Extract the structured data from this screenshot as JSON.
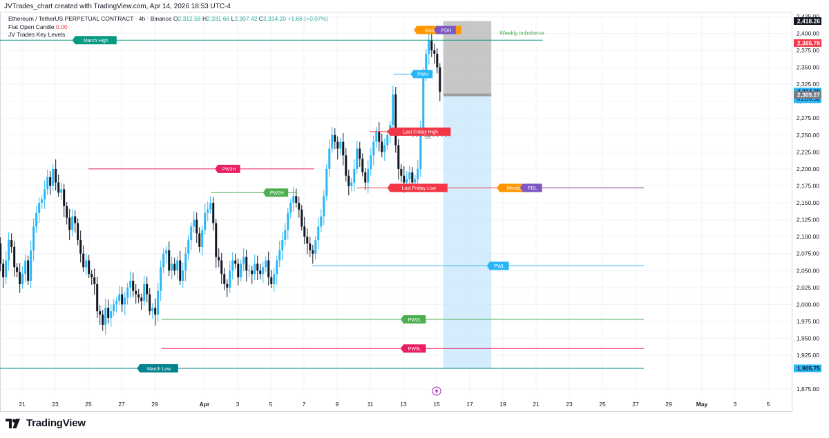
{
  "header": {
    "text": "JVTrades_chart created with TradingView.com, Apr 14, 2026 18:53 UTC-4"
  },
  "legend": {
    "symbol": "Ethereum / TetherUS PERPETUAL CONTRACT · 4h · Binance",
    "o_label": "O",
    "o_value": "2,312.56",
    "h_label": "H",
    "h_value": "2,331.66",
    "l_label": "L",
    "l_value": "2,307.42",
    "c_label": "C",
    "c_value": "2,314.20",
    "change": "+1.66 (+0.07%)",
    "indicator1_name": "Flat Open Candle",
    "indicator1_value": "0.00",
    "indicator2_name": "JV Trades Key Levels"
  },
  "footer": {
    "brand": "TradingView"
  },
  "colors": {
    "up": "#29b6f6",
    "down": "#131722",
    "grid": "#f0f3fa",
    "short_box": "#bdbdbd",
    "long_box": "#cce9fb"
  },
  "chart_data": {
    "type": "candlestick",
    "symbol": "ETHUSDT.P",
    "timeframe": "4h",
    "ylim": [
      1865,
      2432
    ],
    "y_ticks": [
      "2,425.00",
      "2,400.00",
      "2,375.00",
      "2,350.00",
      "2,325.00",
      "2,300.00",
      "2,275.00",
      "2,250.00",
      "2,225.00",
      "2,200.00",
      "2,175.00",
      "2,150.00",
      "2,125.00",
      "2,100.00",
      "2,075.00",
      "2,050.00",
      "2,025.00",
      "2,000.00",
      "1,975.00",
      "1,950.00",
      "1,925.00",
      "1,875.00"
    ],
    "y_tick_values": [
      2425,
      2400,
      2375,
      2350,
      2325,
      2300,
      2275,
      2250,
      2225,
      2200,
      2175,
      2150,
      2125,
      2100,
      2075,
      2050,
      2025,
      2000,
      1975,
      1950,
      1925,
      1875
    ],
    "x_ticks": [
      "21",
      "23",
      "25",
      "27",
      "29",
      "Apr",
      "3",
      "5",
      "7",
      "9",
      "11",
      "13",
      "15",
      "17",
      "19",
      "21",
      "23",
      "25",
      "27",
      "29",
      "May",
      "3",
      "5"
    ],
    "x_tick_days": [
      -11,
      -9,
      -7,
      -5,
      -3,
      0,
      2,
      4,
      6,
      8,
      10,
      12,
      14,
      16,
      18,
      20,
      22,
      24,
      26,
      28,
      30,
      32,
      34
    ],
    "highlighted_date": "15",
    "levels": [
      {
        "label": "March High",
        "value": 2390,
        "color": "#089981",
        "start_day": -14,
        "end_day": 20.4,
        "label_day": -7.8
      },
      {
        "label": "Weekly imbalance",
        "value": 2395,
        "color": "#4caf50",
        "start_day": -14,
        "end_day": 20.4,
        "label_day": 17.8,
        "text_only": true
      },
      {
        "label": "PW3H",
        "value": 2200,
        "color": "#e91e63",
        "start_day": -7,
        "end_day": 6.6,
        "label_day": 0.8
      },
      {
        "label": "PW2H",
        "value": 2165,
        "color": "#4caf50",
        "start_day": 0.4,
        "end_day": 5.6,
        "label_day": 3.7
      },
      {
        "label": "Last Friday High",
        "value": 2255,
        "color": "#f23645",
        "start_day": 10.0,
        "end_day": 12.8,
        "label_day": 11.2
      },
      {
        "label": "Last Friday Low",
        "value": 2172,
        "color": "#f23645",
        "start_day": 9.2,
        "end_day": 26.5,
        "label_day": 11.2
      },
      {
        "label": "Monday High",
        "value": 2405,
        "color": "#ff9800",
        "start_day": 13.8,
        "end_day": 14.0,
        "label_day": 12.8
      },
      {
        "label": "PDH",
        "value": 2405,
        "color": "#7e57c2",
        "start_day": 14.0,
        "end_day": 14.4,
        "label_day": 14.0
      },
      {
        "label": "PWH",
        "value": 2340,
        "color": "#29b6f6",
        "start_day": 11.4,
        "end_day": 13.4,
        "label_day": 12.6
      },
      {
        "label": "Monday Low",
        "value": 2172,
        "color": "#ff9800",
        "start_day": 18.0,
        "end_day": 26.5,
        "label_day": 17.8
      },
      {
        "label": "PDL",
        "value": 2172,
        "color": "#7e57c2",
        "start_day": 19.0,
        "end_day": 26.5,
        "label_day": 19.2
      },
      {
        "label": "PWL",
        "value": 2057,
        "color": "#29b6f6",
        "start_day": 6.5,
        "end_day": 26.5,
        "label_day": 17.2
      },
      {
        "label": "PW2L",
        "value": 1978,
        "color": "#4caf50",
        "start_day": -2.6,
        "end_day": 26.5,
        "label_day": 12.0
      },
      {
        "label": "PW3L",
        "value": 1935,
        "color": "#e91e63",
        "start_day": -2.6,
        "end_day": 26.5,
        "label_day": 12.0
      },
      {
        "label": "March Low",
        "value": 1905.75,
        "color": "#00838f",
        "start_day": -14,
        "end_day": 26.5,
        "label_day": -3.9
      }
    ],
    "be_label": "BE",
    "be_value": 2248,
    "position": {
      "start_day": 14.4,
      "end_day": 17.3,
      "entry": 2309.27,
      "stop": 2418.26,
      "target": 1905.75
    },
    "price_labels": [
      {
        "text": "2,418.26",
        "value": 2418.26,
        "bg": "#131722",
        "fg": "#ffffff"
      },
      {
        "text": "2,385.78",
        "value": 2385.78,
        "bg": "#f23645",
        "fg": "#ffffff"
      },
      {
        "text": "2,314.20",
        "sub": "01:06:52",
        "value": 2314.2,
        "bg": "#29b6f6",
        "fg": "#131722"
      },
      {
        "text": "2,309.27",
        "value": 2309.27,
        "bg": "#787b86",
        "fg": "#ffffff"
      },
      {
        "text": "1,905.75",
        "value": 1905.75,
        "bg": "#29b6f6",
        "fg": "#131722"
      }
    ],
    "closes": [
      2148,
      2160,
      2140,
      2155,
      2162,
      2150,
      2158,
      2145,
      2135,
      2110,
      2075,
      2090,
      2060,
      2040,
      2065,
      2095,
      2085,
      2055,
      2048,
      2030,
      2045,
      2065,
      2035,
      2080,
      2115,
      2135,
      2150,
      2155,
      2170,
      2188,
      2175,
      2200,
      2180,
      2165,
      2170,
      2145,
      2128,
      2110,
      2130,
      2120,
      2095,
      2075,
      2055,
      2065,
      2045,
      2040,
      2030,
      1990,
      1985,
      1970,
      1995,
      1980,
      1990,
      2000,
      2005,
      2015,
      2000,
      2010,
      2025,
      2035,
      2020,
      2015,
      2010,
      2005,
      2030,
      2015,
      1990,
      1995,
      1985,
      2020,
      2055,
      2075,
      2080,
      2050,
      2060,
      2050,
      2065,
      2035,
      2050,
      2075,
      2095,
      2115,
      2125,
      2105,
      2085,
      2110,
      2135,
      2140,
      2150,
      2120,
      2070,
      2065,
      2045,
      2030,
      2025,
      2050,
      2065,
      2060,
      2040,
      2060,
      2070,
      2050,
      2050,
      2045,
      2060,
      2050,
      2045,
      2055,
      2065,
      2040,
      2030,
      2045,
      2065,
      2080,
      2095,
      2110,
      2135,
      2150,
      2160,
      2150,
      2140,
      2115,
      2100,
      2090,
      2080,
      2075,
      2095,
      2115,
      2130,
      2160,
      2200,
      2230,
      2250,
      2240,
      2230,
      2240,
      2220,
      2190,
      2175,
      2180,
      2200,
      2230,
      2215,
      2195,
      2180,
      2200,
      2220,
      2240,
      2255,
      2240,
      2225,
      2235,
      2250,
      2265,
      2310,
      2235,
      2200,
      2190,
      2180,
      2185,
      2195,
      2180,
      2185,
      2200,
      2260,
      2340,
      2370,
      2390,
      2375,
      2370,
      2350,
      2314
    ],
    "start_day": -14.6,
    "bar_days": 0.1667,
    "last_bar_day": 14.2
  }
}
